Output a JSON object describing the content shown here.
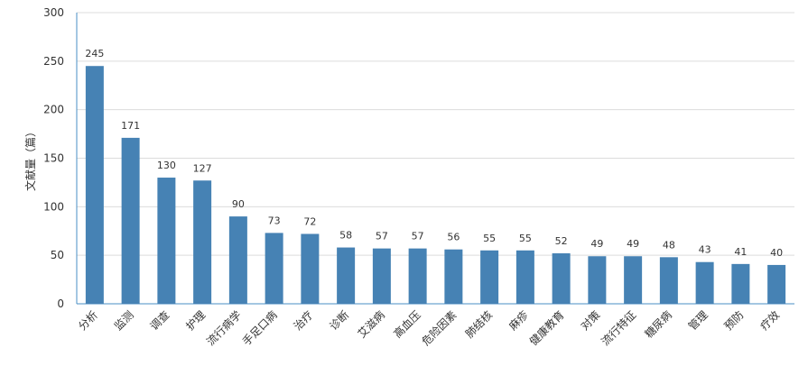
{
  "chart_data": {
    "type": "bar",
    "title": "",
    "xlabel": "",
    "ylabel": "文献量（篇）",
    "ylim": [
      0,
      300
    ],
    "yticks": [
      0,
      50,
      100,
      150,
      200,
      250,
      300
    ],
    "grid": true,
    "bar_color": "#4682b4",
    "categories": [
      "分析",
      "监测",
      "调查",
      "护理",
      "流行病学",
      "手足口病",
      "治疗",
      "诊断",
      "艾滋病",
      "高血压",
      "危险因素",
      "肺结核",
      "麻疹",
      "健康教育",
      "对策",
      "流行特征",
      "糖尿病",
      "管理",
      "预防",
      "疗效"
    ],
    "values": [
      245,
      171,
      130,
      127,
      90,
      73,
      72,
      58,
      57,
      57,
      56,
      55,
      55,
      52,
      49,
      49,
      48,
      43,
      41,
      40
    ]
  }
}
